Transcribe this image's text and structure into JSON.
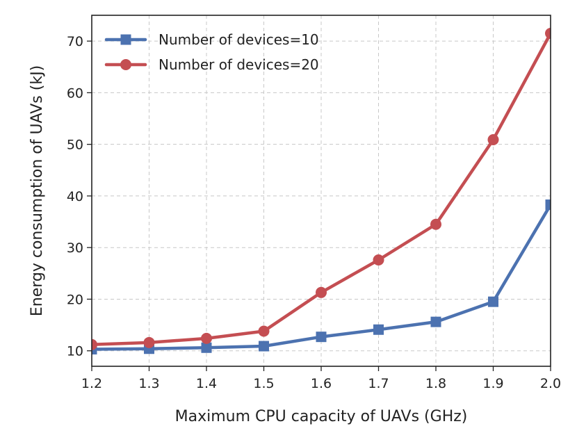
{
  "chart_data": {
    "type": "line",
    "title": "",
    "xlabel": "Maximum CPU capacity of UAVs (GHz)",
    "ylabel": "Energy consumption of UAVs (kJ)",
    "x": [
      1.2,
      1.3,
      1.4,
      1.5,
      1.6,
      1.7,
      1.8,
      1.9,
      2.0
    ],
    "x_tick_labels": [
      "1.2",
      "1.3",
      "1.4",
      "1.5",
      "1.6",
      "1.7",
      "1.8",
      "1.9",
      "2.0"
    ],
    "y_ticks": [
      10,
      20,
      30,
      40,
      50,
      60,
      70
    ],
    "y_tick_labels": [
      "10",
      "20",
      "30",
      "40",
      "50",
      "60",
      "70"
    ],
    "xlim": [
      1.2,
      2.0
    ],
    "ylim": [
      7,
      75
    ],
    "grid": true,
    "legend_position": "upper-left",
    "series": [
      {
        "name": "Number of devices=10",
        "marker": "square",
        "color": "#4c72b0",
        "values": [
          10.3,
          10.4,
          10.6,
          10.9,
          12.7,
          14.1,
          15.6,
          19.5,
          38.3
        ]
      },
      {
        "name": "Number of devices=20",
        "marker": "circle",
        "color": "#c44e52",
        "values": [
          11.2,
          11.6,
          12.4,
          13.8,
          21.3,
          27.6,
          34.5,
          50.9,
          71.5
        ]
      }
    ]
  }
}
